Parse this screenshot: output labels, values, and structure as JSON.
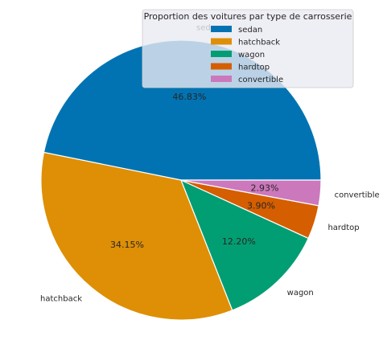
{
  "chart_data": {
    "type": "pie",
    "title": "",
    "legend_title": "Proportion des voitures par type de carrosserie",
    "legend_position": "top-right",
    "categories": [
      "sedan",
      "hatchback",
      "wagon",
      "hardtop",
      "convertible"
    ],
    "values": [
      46.83,
      34.15,
      12.2,
      3.9,
      2.93
    ],
    "value_labels": [
      "46.83%",
      "34.15%",
      "12.20%",
      "3.90%",
      "2.93%"
    ],
    "colors": [
      "#0173b2",
      "#de8f05",
      "#029e73",
      "#d55e00",
      "#cc78bc"
    ],
    "start_angle": "0",
    "direction": "counterclockwise"
  }
}
